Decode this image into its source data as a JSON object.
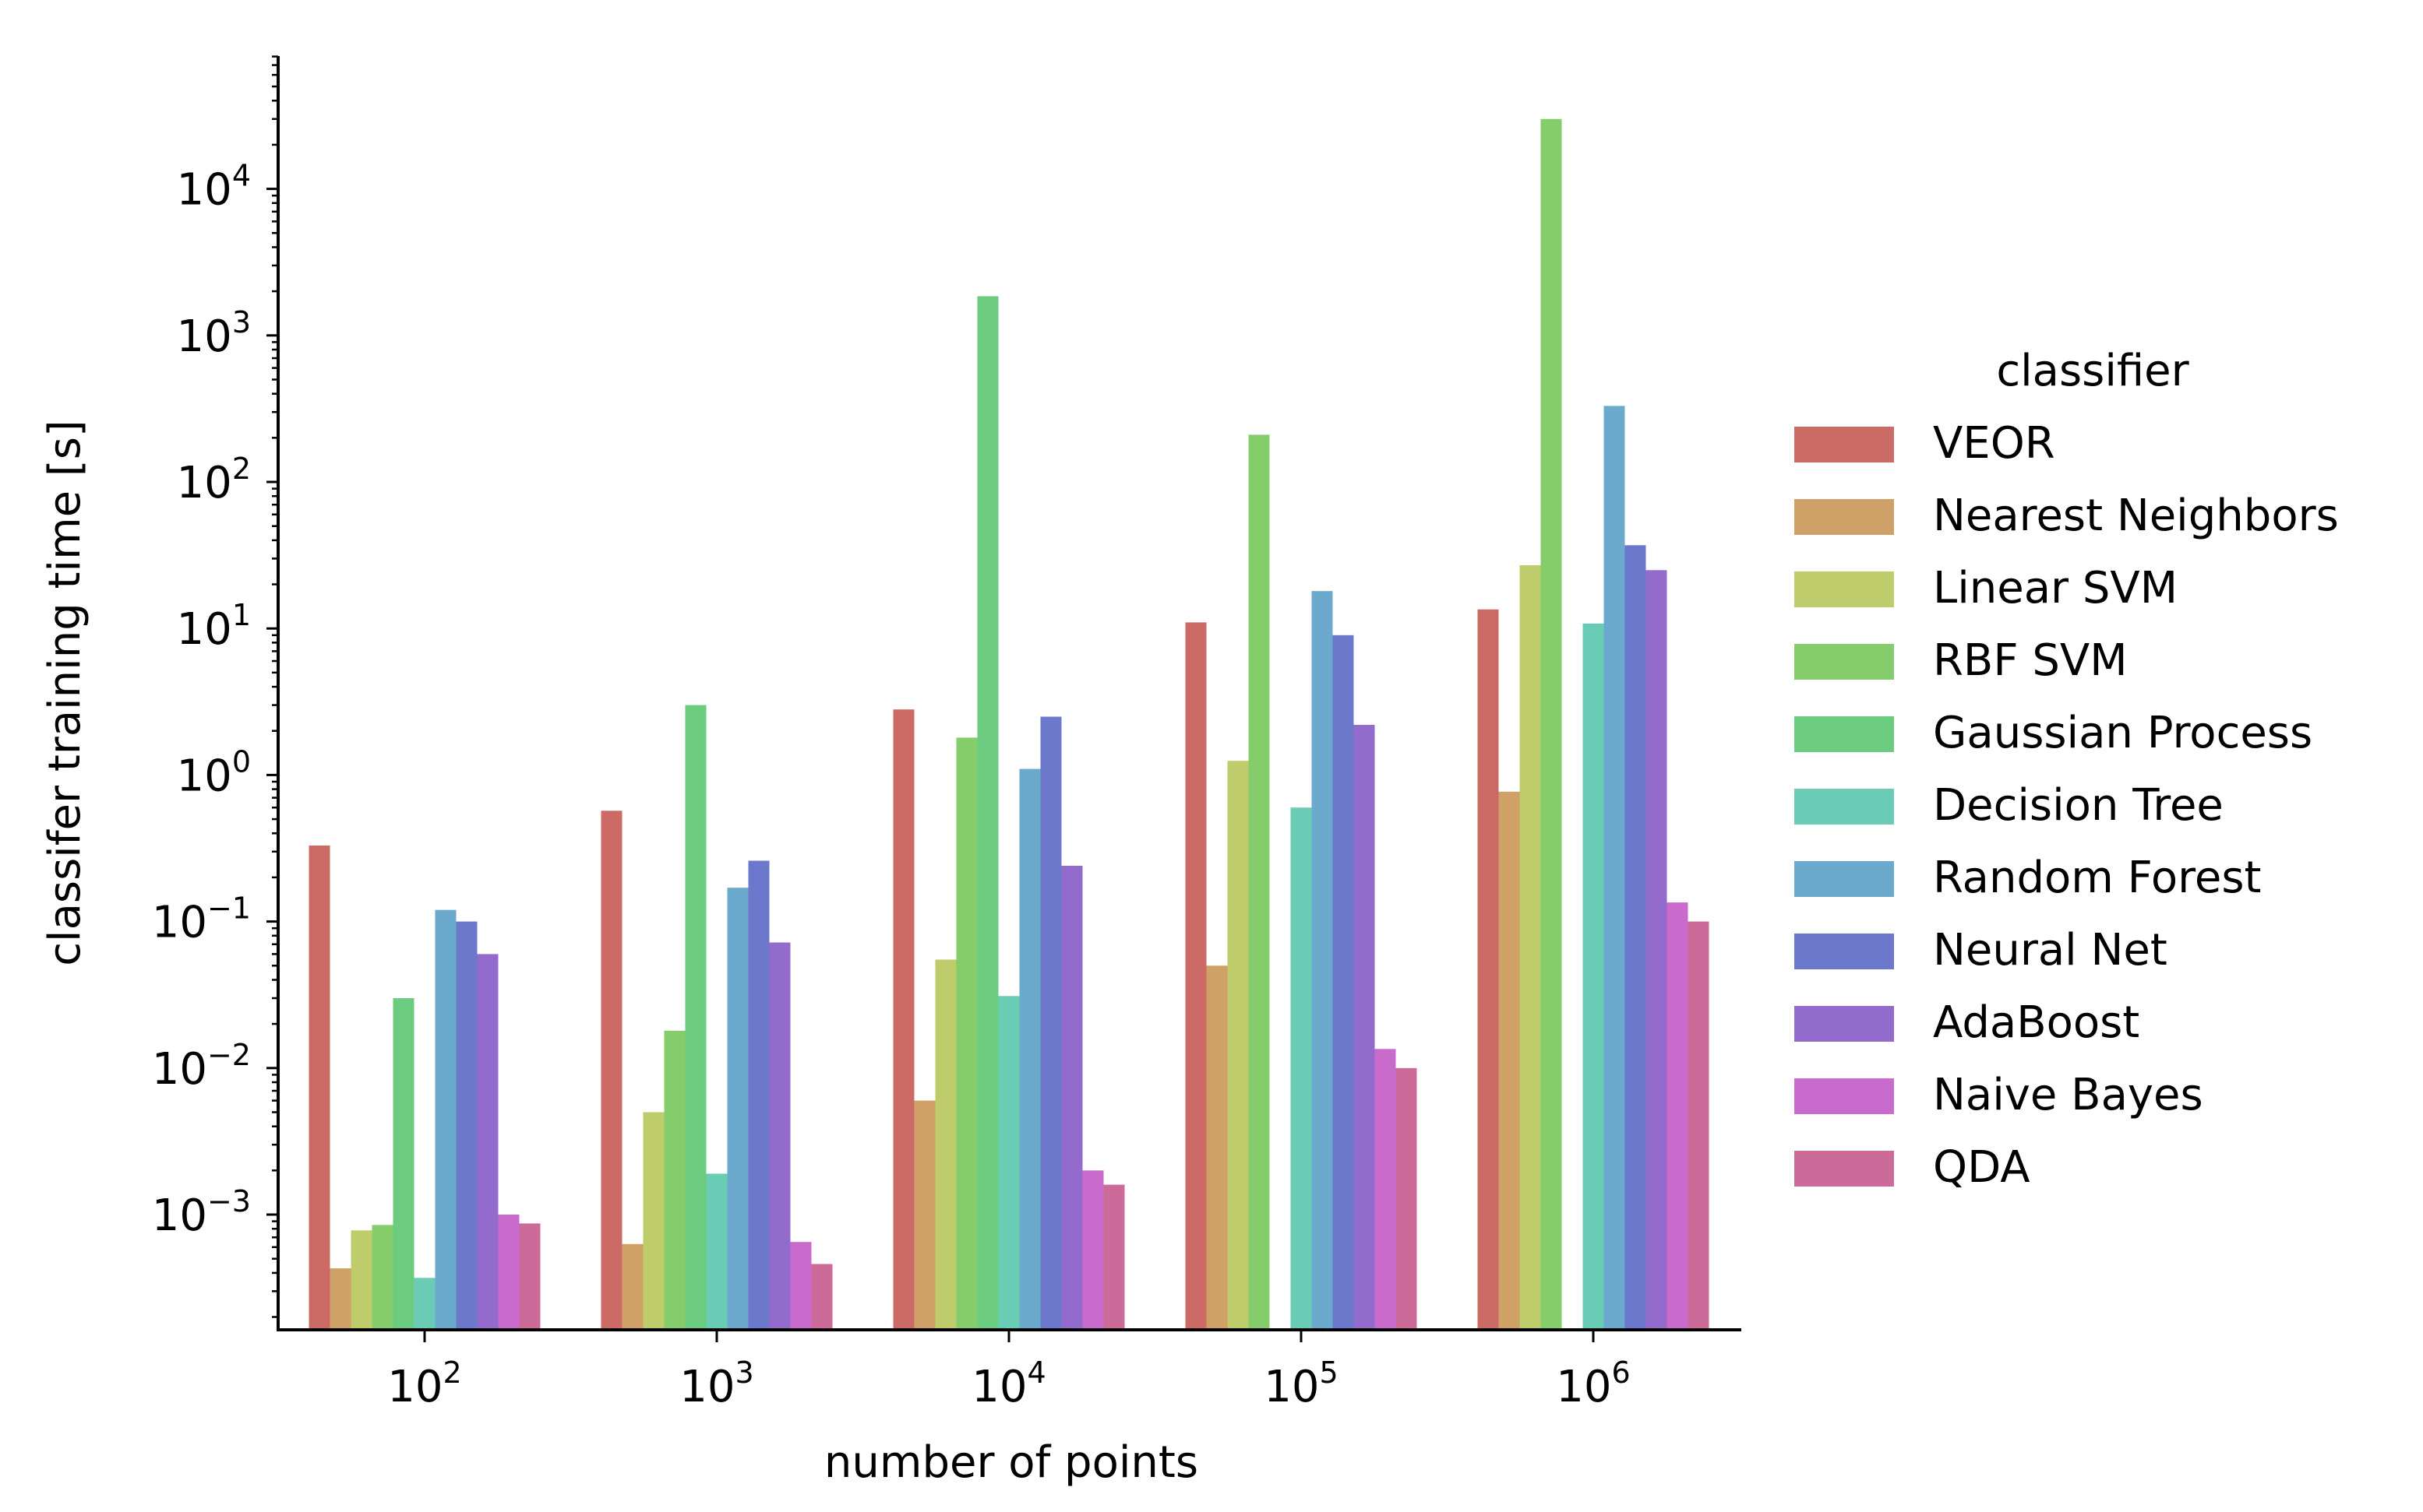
{
  "chart_data": {
    "type": "bar",
    "title": "",
    "xlabel": "number of points",
    "ylabel": "classifer training time [s]",
    "yscale": "log",
    "ylim": [
      0.00015,
      80000
    ],
    "categories": [
      "10^2",
      "10^3",
      "10^4",
      "10^5",
      "10^6"
    ],
    "category_labels": [
      {
        "base": "10",
        "exp": "2"
      },
      {
        "base": "10",
        "exp": "3"
      },
      {
        "base": "10",
        "exp": "4"
      },
      {
        "base": "10",
        "exp": "5"
      },
      {
        "base": "10",
        "exp": "6"
      }
    ],
    "yticks": [
      {
        "value": 0.001,
        "base": "10",
        "exp": "−3"
      },
      {
        "value": 0.01,
        "base": "10",
        "exp": "−2"
      },
      {
        "value": 0.1,
        "base": "10",
        "exp": "−1"
      },
      {
        "value": 1,
        "base": "10",
        "exp": "0"
      },
      {
        "value": 10,
        "base": "10",
        "exp": "1"
      },
      {
        "value": 100,
        "base": "10",
        "exp": "2"
      },
      {
        "value": 1000,
        "base": "10",
        "exp": "3"
      },
      {
        "value": 10000,
        "base": "10",
        "exp": "4"
      }
    ],
    "legend": {
      "title": "classifier",
      "position": "right"
    },
    "series": [
      {
        "name": "VEOR",
        "color": "#cc6b65",
        "values": [
          0.33,
          0.57,
          2.8,
          11,
          13.5
        ]
      },
      {
        "name": "Nearest Neighbors",
        "color": "#cfa166",
        "values": [
          0.00043,
          0.00063,
          0.006,
          0.05,
          0.77
        ]
      },
      {
        "name": "Linear SVM",
        "color": "#bfcc6b",
        "values": [
          0.00078,
          0.005,
          0.055,
          1.25,
          27
        ]
      },
      {
        "name": "RBF SVM",
        "color": "#85cc6b",
        "values": [
          0.00085,
          0.018,
          1.8,
          210,
          30000
        ]
      },
      {
        "name": "Gaussian Process",
        "color": "#6bcc80",
        "values": [
          0.03,
          3.0,
          1850,
          null,
          null
        ]
      },
      {
        "name": "Decision Tree",
        "color": "#6bccb5",
        "values": [
          0.00037,
          0.0019,
          0.031,
          0.6,
          10.8
        ]
      },
      {
        "name": "Random Forest",
        "color": "#6baacc",
        "values": [
          0.12,
          0.17,
          1.1,
          18,
          330
        ]
      },
      {
        "name": "Neural Net",
        "color": "#6b78cc",
        "values": [
          0.1,
          0.26,
          2.5,
          9,
          37
        ]
      },
      {
        "name": "AdaBoost",
        "color": "#936bcc",
        "values": [
          0.06,
          0.072,
          0.24,
          2.2,
          25
        ]
      },
      {
        "name": "Naive Bayes",
        "color": "#c96bcc",
        "values": [
          0.001,
          0.00065,
          0.002,
          0.0135,
          0.135
        ]
      },
      {
        "name": "QDA",
        "color": "#cc6b9a",
        "values": [
          0.00087,
          0.00046,
          0.0016,
          0.01,
          0.1
        ]
      }
    ]
  }
}
